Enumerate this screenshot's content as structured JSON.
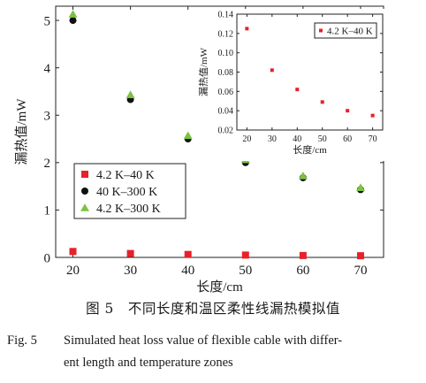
{
  "chart_data": [
    {
      "type": "scatter",
      "ylabel": "漏热值/mW",
      "xlabel": "长度/cm",
      "x": [
        20,
        30,
        40,
        50,
        60,
        70
      ],
      "xticks": [
        "20",
        "30",
        "40",
        "50",
        "60",
        "70"
      ],
      "yticks": [
        "0",
        "1",
        "2",
        "3",
        "4",
        "5"
      ],
      "xlim": [
        17,
        74
      ],
      "ylim": [
        0,
        5.3
      ],
      "legend_position": "lower-left",
      "series": [
        {
          "name": "4.2 K–40 K",
          "color": "#e8202a",
          "marker": "square",
          "values": [
            0.125,
            0.082,
            0.062,
            0.049,
            0.04,
            0.035
          ]
        },
        {
          "name": "40 K–300 K",
          "color": "#111111",
          "marker": "circle",
          "values": [
            5.0,
            3.33,
            2.5,
            2.0,
            1.68,
            1.43
          ]
        },
        {
          "name": "4.2 K–300 K",
          "color": "#7dc242",
          "marker": "triangle",
          "values": [
            5.13,
            3.43,
            2.57,
            2.06,
            1.72,
            1.47
          ]
        }
      ]
    },
    {
      "type": "scatter",
      "ylabel": "漏热值/mW",
      "xlabel": "长度/cm",
      "x": [
        20,
        30,
        40,
        50,
        60,
        70
      ],
      "xticks": [
        "20",
        "30",
        "40",
        "50",
        "60",
        "70"
      ],
      "yticks": [
        "0.02",
        "0.04",
        "0.06",
        "0.08",
        "0.10",
        "0.12",
        "0.14"
      ],
      "xlim": [
        16,
        74
      ],
      "ylim": [
        0.02,
        0.14
      ],
      "legend_position": "top-right",
      "series": [
        {
          "name": "4.2 K–40 K",
          "color": "#e8202a",
          "marker": "square",
          "values": [
            0.125,
            0.082,
            0.062,
            0.049,
            0.04,
            0.035
          ]
        }
      ]
    }
  ],
  "caption": {
    "cn": "图 5　不同长度和温区柔性线漏热模拟值",
    "en_label": "Fig. 5",
    "en_line1": "Simulated heat loss value of flexible cable with differ-",
    "en_line2": "ent length and temperature zones"
  }
}
